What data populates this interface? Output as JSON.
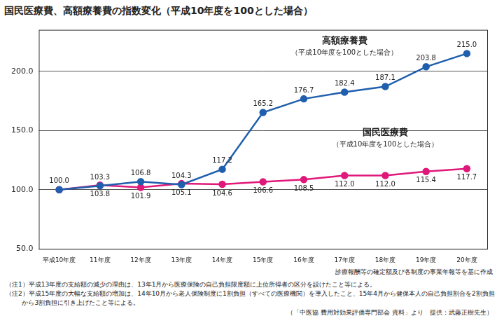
{
  "chart_data": {
    "type": "line",
    "title": "国民医療費、高額療養費の指数変化（平成10年度を100とした場合）",
    "categories": [
      "平成10年度",
      "11年度",
      "12年度",
      "13年度",
      "14年度",
      "15年度",
      "16年度",
      "17年度",
      "18年度",
      "19年度",
      "20年度"
    ],
    "series": [
      {
        "name": "高額療養費",
        "color": "#1f5fae",
        "values": [
          100.0,
          103.3,
          106.8,
          104.3,
          117.2,
          165.2,
          176.7,
          182.4,
          187.1,
          203.8,
          215.0
        ],
        "value_labels": [
          "100.0",
          "103.3",
          "106.8",
          "104.3",
          "117.2",
          "165.2",
          "176.7",
          "182.4",
          "187.1",
          "203.8",
          "215.0"
        ]
      },
      {
        "name": "国民医療費",
        "color": "#e0187a",
        "values": [
          100.0,
          103.8,
          101.9,
          105.1,
          104.6,
          106.6,
          108.5,
          112.0,
          112.0,
          115.4,
          117.7
        ],
        "value_labels": [
          null,
          "103.8",
          "101.9",
          "105.1",
          "104.6",
          "106.6",
          "108.5",
          "112.0",
          "112.0",
          "115.4",
          "117.7"
        ]
      }
    ],
    "annotations": [
      "（平成10年度を100とした場合）",
      "（平成10年度を100とした場合）"
    ],
    "source": "診療報酬等の確定額及び各制度の事業年報等を基に作成",
    "notes": [
      "（注1）平成13年度の支給額の減少の理由は、13年1月から医療保険の自己負担限度額に上位所得者の区分を設けたこと等による。",
      "（注2）平成15年度の大幅な支給額の増加は、14年10月から老人保険制度に1割負担（すべての医療機関）を導入したこと、15年4月から健保本人の自己負担割合を2割負担から3割負担に引き上げたこと等による。"
    ],
    "credit": "（「中医協 費用対効果評価専門部会 資料」より　提供：武藤正樹先生）",
    "ylim": [
      50,
      235
    ],
    "yticks": [
      {
        "value": 50,
        "label": "50.0"
      },
      {
        "value": 100,
        "label": "100.0"
      },
      {
        "value": 150,
        "label": "150.0"
      },
      {
        "value": 200,
        "label": "200.0"
      }
    ],
    "grid": true,
    "data_labels": true,
    "marker": "circle"
  }
}
